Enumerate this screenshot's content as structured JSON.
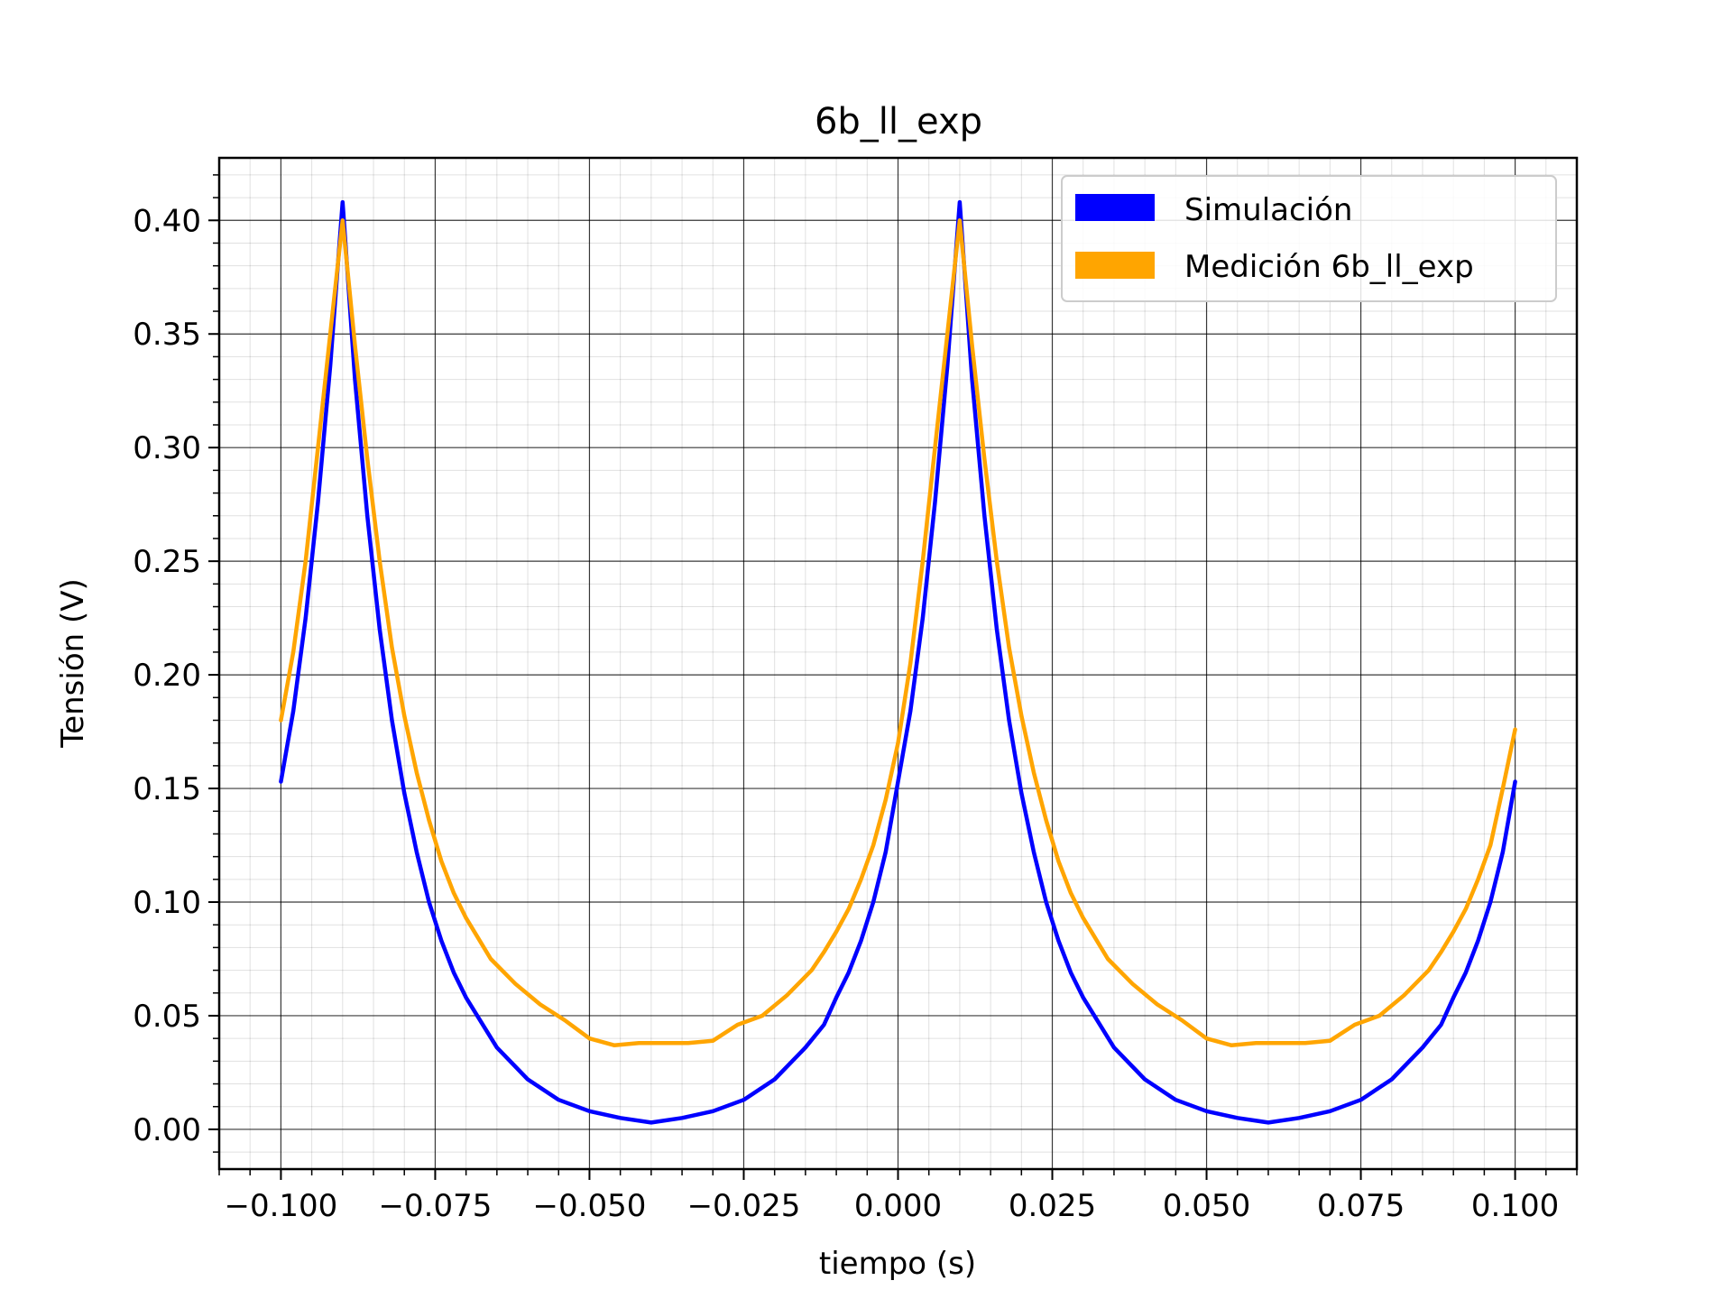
{
  "chart_data": {
    "type": "line",
    "title": "6b_ll_exp",
    "xlabel": "tiempo (s)",
    "ylabel": "Tensión (V)",
    "xlim": [
      -0.11,
      0.11
    ],
    "ylim": [
      -0.0175,
      0.4275
    ],
    "xticks": [
      -0.1,
      -0.075,
      -0.05,
      -0.025,
      0.0,
      0.025,
      0.05,
      0.075,
      0.1
    ],
    "xtick_labels": [
      "−0.100",
      "−0.075",
      "−0.050",
      "−0.025",
      "0.000",
      "0.025",
      "0.050",
      "0.075",
      "0.100"
    ],
    "yticks": [
      0.0,
      0.05,
      0.1,
      0.15,
      0.2,
      0.25,
      0.3,
      0.35,
      0.4
    ],
    "ytick_labels": [
      "0.00",
      "0.05",
      "0.10",
      "0.15",
      "0.20",
      "0.25",
      "0.30",
      "0.35",
      "0.40"
    ],
    "grid": true,
    "minor_grid": true,
    "legend_position": "top-right",
    "series": [
      {
        "name": "Simulación",
        "color": "#0000ff",
        "x": [
          -0.1,
          -0.098,
          -0.096,
          -0.094,
          -0.092,
          -0.09,
          -0.088,
          -0.086,
          -0.084,
          -0.082,
          -0.08,
          -0.078,
          -0.076,
          -0.074,
          -0.072,
          -0.07,
          -0.065,
          -0.06,
          -0.055,
          -0.05,
          -0.045,
          -0.04,
          -0.035,
          -0.03,
          -0.025,
          -0.02,
          -0.015,
          -0.012,
          -0.01,
          -0.008,
          -0.006,
          -0.004,
          -0.002,
          0.0,
          0.002,
          0.004,
          0.006,
          0.008,
          0.01,
          0.012,
          0.014,
          0.016,
          0.018,
          0.02,
          0.022,
          0.024,
          0.026,
          0.028,
          0.03,
          0.035,
          0.04,
          0.045,
          0.05,
          0.055,
          0.06,
          0.065,
          0.07,
          0.075,
          0.08,
          0.085,
          0.088,
          0.09,
          0.092,
          0.094,
          0.096,
          0.098,
          0.1
        ],
        "y": [
          0.153,
          0.184,
          0.225,
          0.276,
          0.336,
          0.408,
          0.33,
          0.27,
          0.22,
          0.18,
          0.148,
          0.122,
          0.1,
          0.083,
          0.069,
          0.058,
          0.036,
          0.022,
          0.013,
          0.008,
          0.005,
          0.003,
          0.005,
          0.008,
          0.013,
          0.022,
          0.036,
          0.046,
          0.058,
          0.069,
          0.083,
          0.1,
          0.122,
          0.153,
          0.184,
          0.225,
          0.276,
          0.336,
          0.408,
          0.33,
          0.27,
          0.22,
          0.18,
          0.148,
          0.122,
          0.1,
          0.083,
          0.069,
          0.058,
          0.036,
          0.022,
          0.013,
          0.008,
          0.005,
          0.003,
          0.005,
          0.008,
          0.013,
          0.022,
          0.036,
          0.046,
          0.058,
          0.069,
          0.083,
          0.1,
          0.122,
          0.153
        ]
      },
      {
        "name": "Medición 6b_ll_exp",
        "color": "#ffa500",
        "x": [
          -0.1,
          -0.098,
          -0.096,
          -0.094,
          -0.092,
          -0.09,
          -0.088,
          -0.086,
          -0.084,
          -0.082,
          -0.08,
          -0.078,
          -0.076,
          -0.074,
          -0.072,
          -0.07,
          -0.066,
          -0.062,
          -0.058,
          -0.054,
          -0.05,
          -0.046,
          -0.042,
          -0.038,
          -0.034,
          -0.03,
          -0.026,
          -0.022,
          -0.018,
          -0.014,
          -0.012,
          -0.01,
          -0.008,
          -0.006,
          -0.004,
          -0.002,
          0.0,
          0.002,
          0.004,
          0.006,
          0.008,
          0.01,
          0.012,
          0.014,
          0.016,
          0.018,
          0.02,
          0.022,
          0.024,
          0.026,
          0.028,
          0.03,
          0.034,
          0.038,
          0.042,
          0.046,
          0.05,
          0.054,
          0.058,
          0.062,
          0.066,
          0.07,
          0.074,
          0.078,
          0.082,
          0.086,
          0.088,
          0.09,
          0.092,
          0.094,
          0.096,
          0.098,
          0.1
        ],
        "y": [
          0.18,
          0.21,
          0.25,
          0.3,
          0.35,
          0.4,
          0.345,
          0.295,
          0.25,
          0.212,
          0.182,
          0.157,
          0.136,
          0.118,
          0.104,
          0.093,
          0.075,
          0.064,
          0.055,
          0.048,
          0.04,
          0.037,
          0.038,
          0.038,
          0.038,
          0.039,
          0.046,
          0.05,
          0.059,
          0.07,
          0.078,
          0.087,
          0.097,
          0.11,
          0.125,
          0.145,
          0.17,
          0.205,
          0.25,
          0.3,
          0.35,
          0.4,
          0.345,
          0.295,
          0.25,
          0.212,
          0.182,
          0.157,
          0.136,
          0.118,
          0.104,
          0.093,
          0.075,
          0.064,
          0.055,
          0.048,
          0.04,
          0.037,
          0.038,
          0.038,
          0.038,
          0.039,
          0.046,
          0.05,
          0.059,
          0.07,
          0.078,
          0.087,
          0.097,
          0.11,
          0.125,
          0.15,
          0.176
        ]
      }
    ]
  }
}
